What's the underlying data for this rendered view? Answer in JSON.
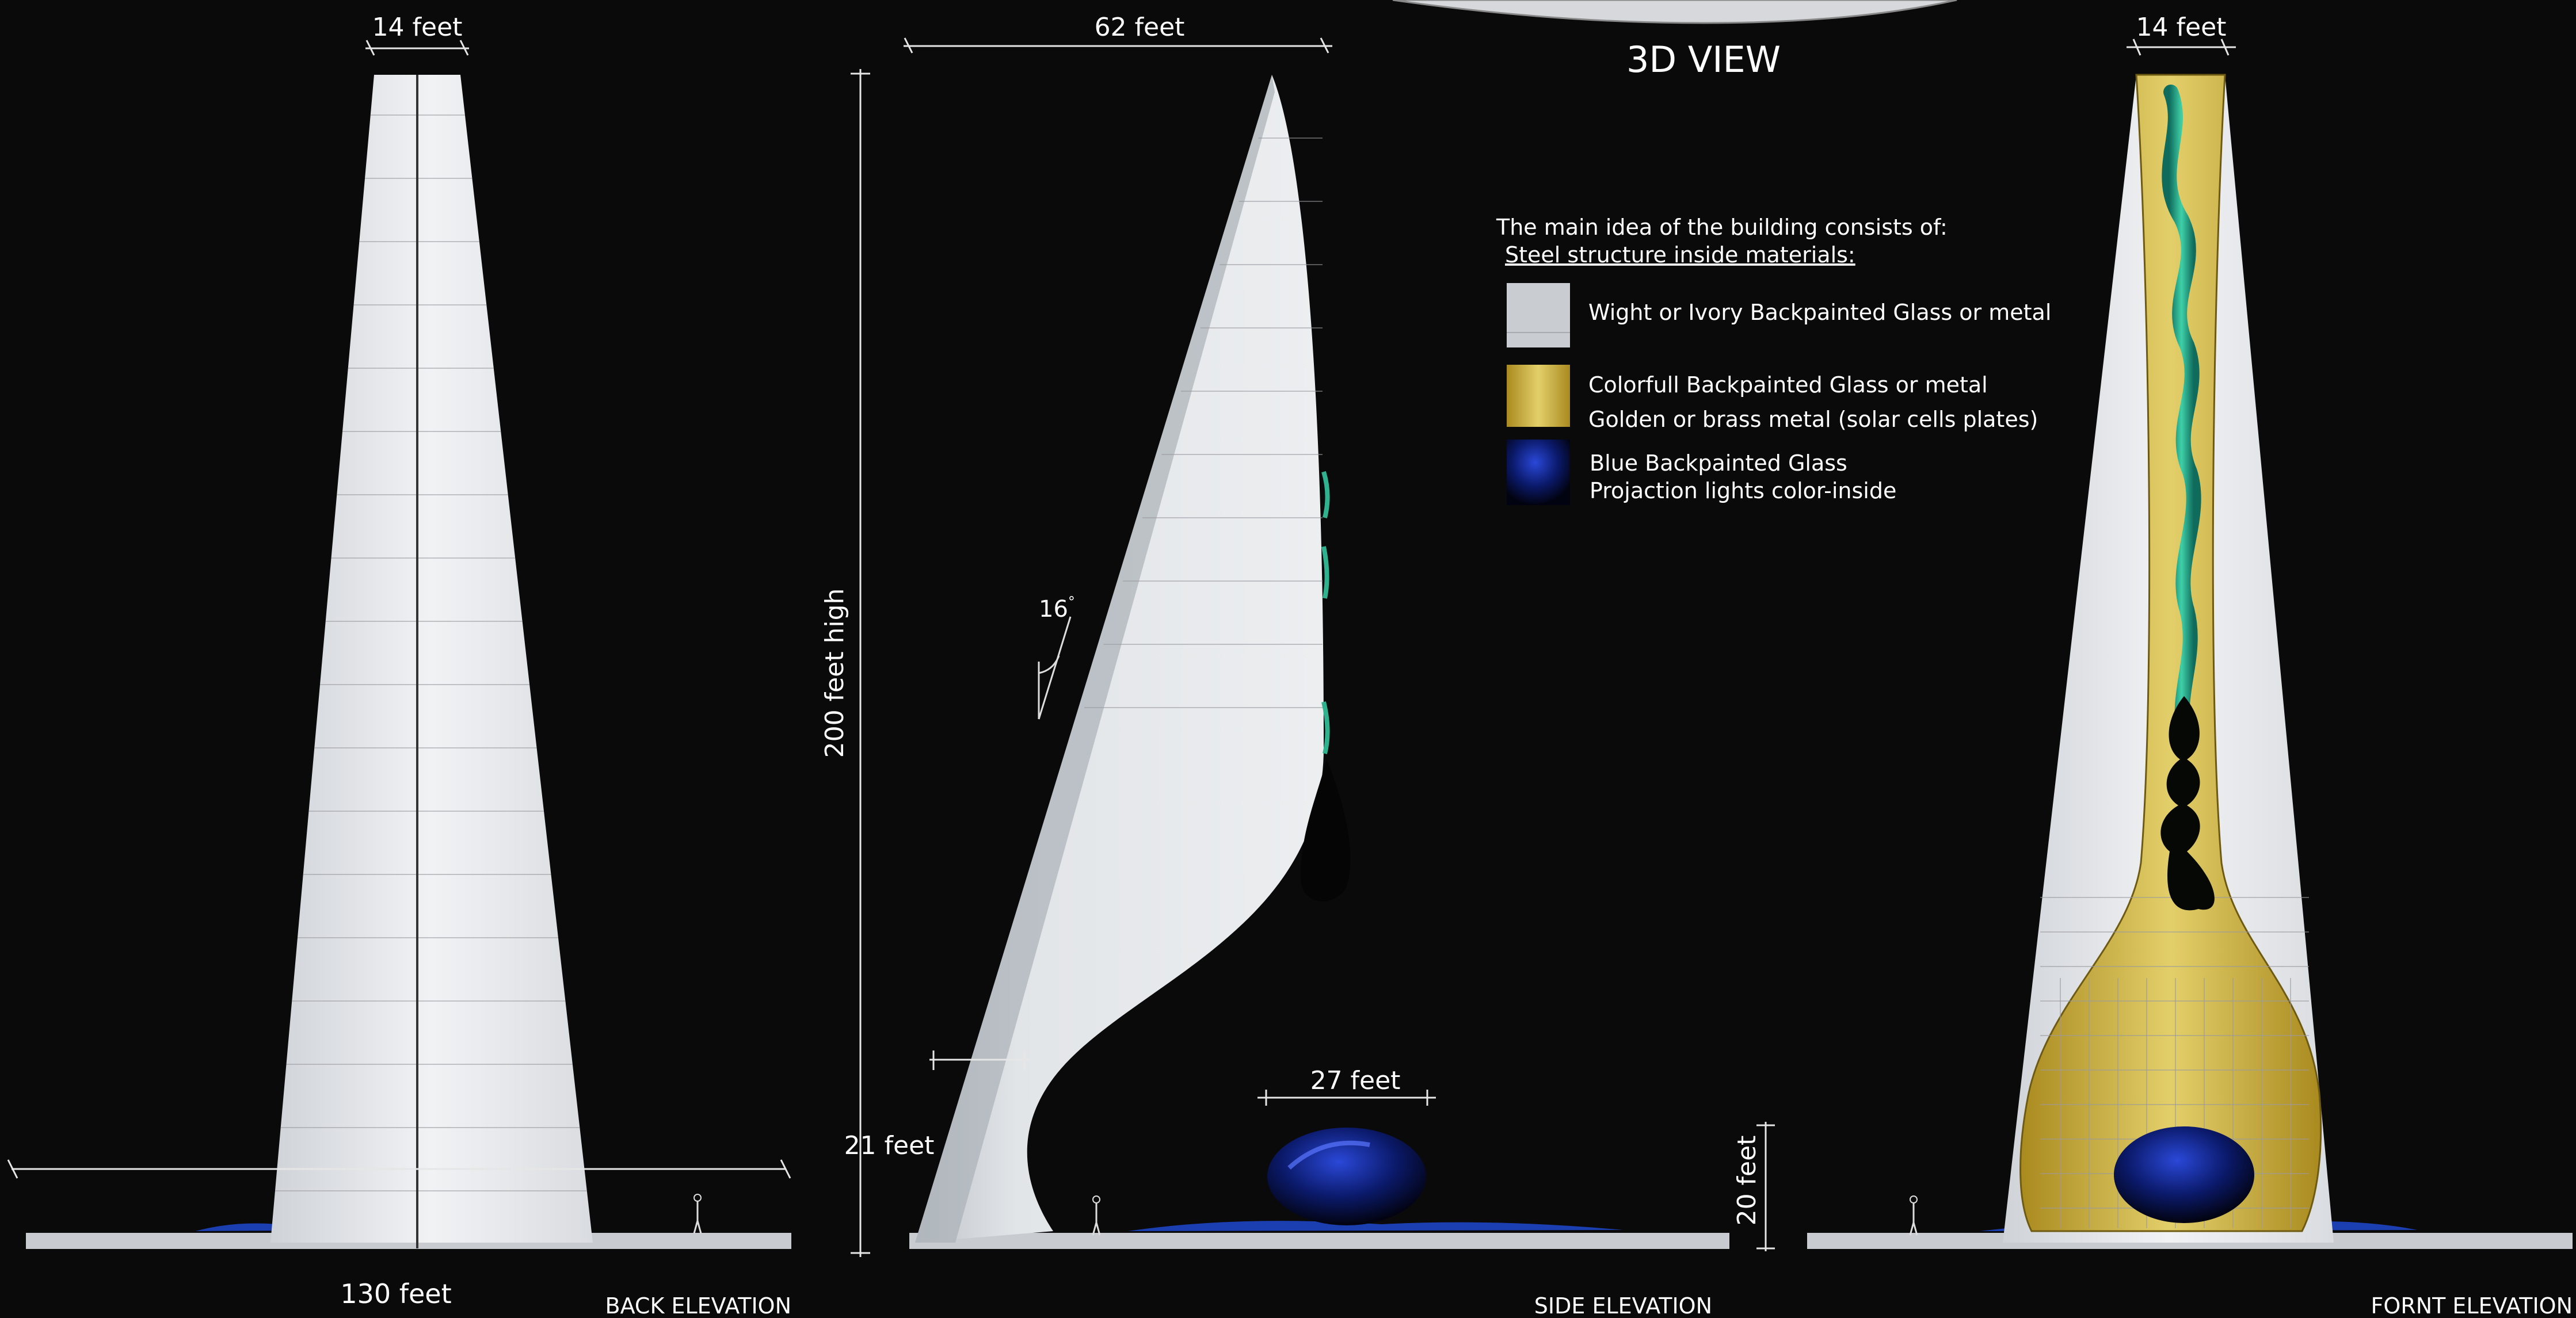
{
  "title": "3D VIEW",
  "views": {
    "back": {
      "label": "BACK ELEVATION",
      "top_width": "14 feet",
      "base_width": "130 feet"
    },
    "side": {
      "label": "SIDE ELEVATION",
      "top_width": "62 feet",
      "height": "200 feet high",
      "angle": "16",
      "angle_unit": "°",
      "base_offset": "21 feet",
      "drop_width": "27 feet"
    },
    "front": {
      "label": "FORNT ELEVATION",
      "top_width": "14 feet",
      "drop_height": "20 feet"
    }
  },
  "legend": {
    "intro": "The main idea of the building consists of:",
    "subtitle": "Steel structure inside materials:",
    "items": [
      {
        "swatch": "white",
        "color": "#c9cdd2",
        "lines": [
          "Wight or Ivory Backpainted Glass or metal"
        ]
      },
      {
        "swatch": "gold",
        "color": "#b59a2e",
        "lines": [
          "Colorfull Backpainted  Glass or metal",
          "Golden or brass  metal (solar cells plates)"
        ]
      },
      {
        "swatch": "blue",
        "color": "#0b1a6b",
        "lines": [
          "Blue Backpainted Glass",
          "Projaction lights color-inside"
        ]
      }
    ]
  }
}
